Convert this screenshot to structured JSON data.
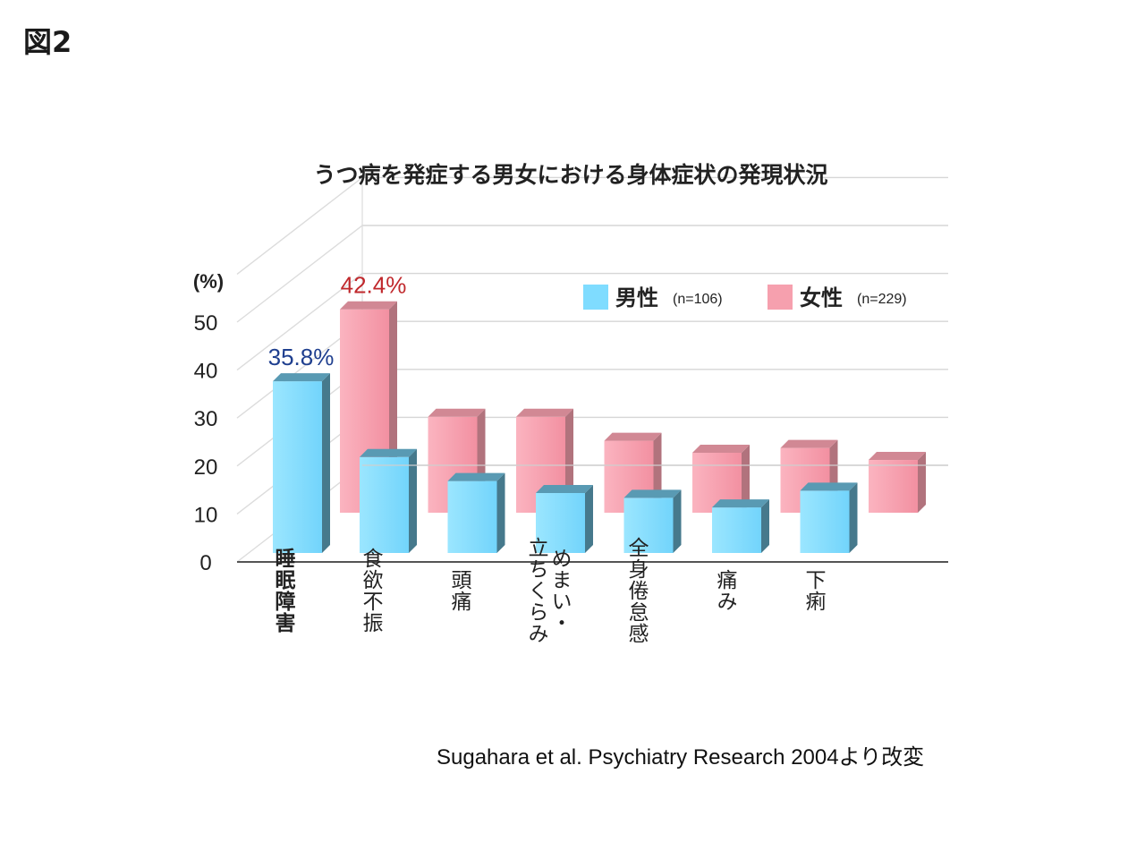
{
  "figure_label": "図2",
  "source_note": "Sugahara et al. Psychiatry Research 2004より改変",
  "chart_data": {
    "type": "bar",
    "title": "うつ病を発症する男女における身体症状の発現状況",
    "ylabel": "(%)",
    "ylim": [
      0,
      50
    ],
    "yticks": [
      0,
      10,
      20,
      30,
      40,
      50
    ],
    "grid": true,
    "legend_position": "top-right",
    "categories": [
      "睡眠障害",
      "食欲不振",
      "頭痛",
      "立ちくらみ・めまい",
      "全身倦怠感",
      "痛み",
      "下痢"
    ],
    "category_label_columns": [
      [
        "睡眠障害"
      ],
      [
        "食欲不振"
      ],
      [
        "頭痛"
      ],
      [
        "めまい・",
        "立ちくらみ"
      ],
      [
        "全身倦怠感"
      ],
      [
        "痛み"
      ],
      [
        "下痢"
      ]
    ],
    "series": [
      {
        "name": "男性",
        "n_label": "(n=106)",
        "color": "#7fdcff",
        "values": [
          35.8,
          20.0,
          15.0,
          12.5,
          11.5,
          9.5,
          13.0
        ]
      },
      {
        "name": "女性",
        "n_label": "(n=229)",
        "color": "#f6a0ae",
        "values": [
          42.4,
          20.0,
          20.0,
          15.0,
          12.5,
          13.5,
          11.0
        ]
      }
    ],
    "data_labels": [
      {
        "series": "男性",
        "category": "睡眠障害",
        "text": "35.8%",
        "color": "#1f3f8f"
      },
      {
        "series": "女性",
        "category": "睡眠障害",
        "text": "42.4%",
        "color": "#c0282c"
      }
    ]
  }
}
